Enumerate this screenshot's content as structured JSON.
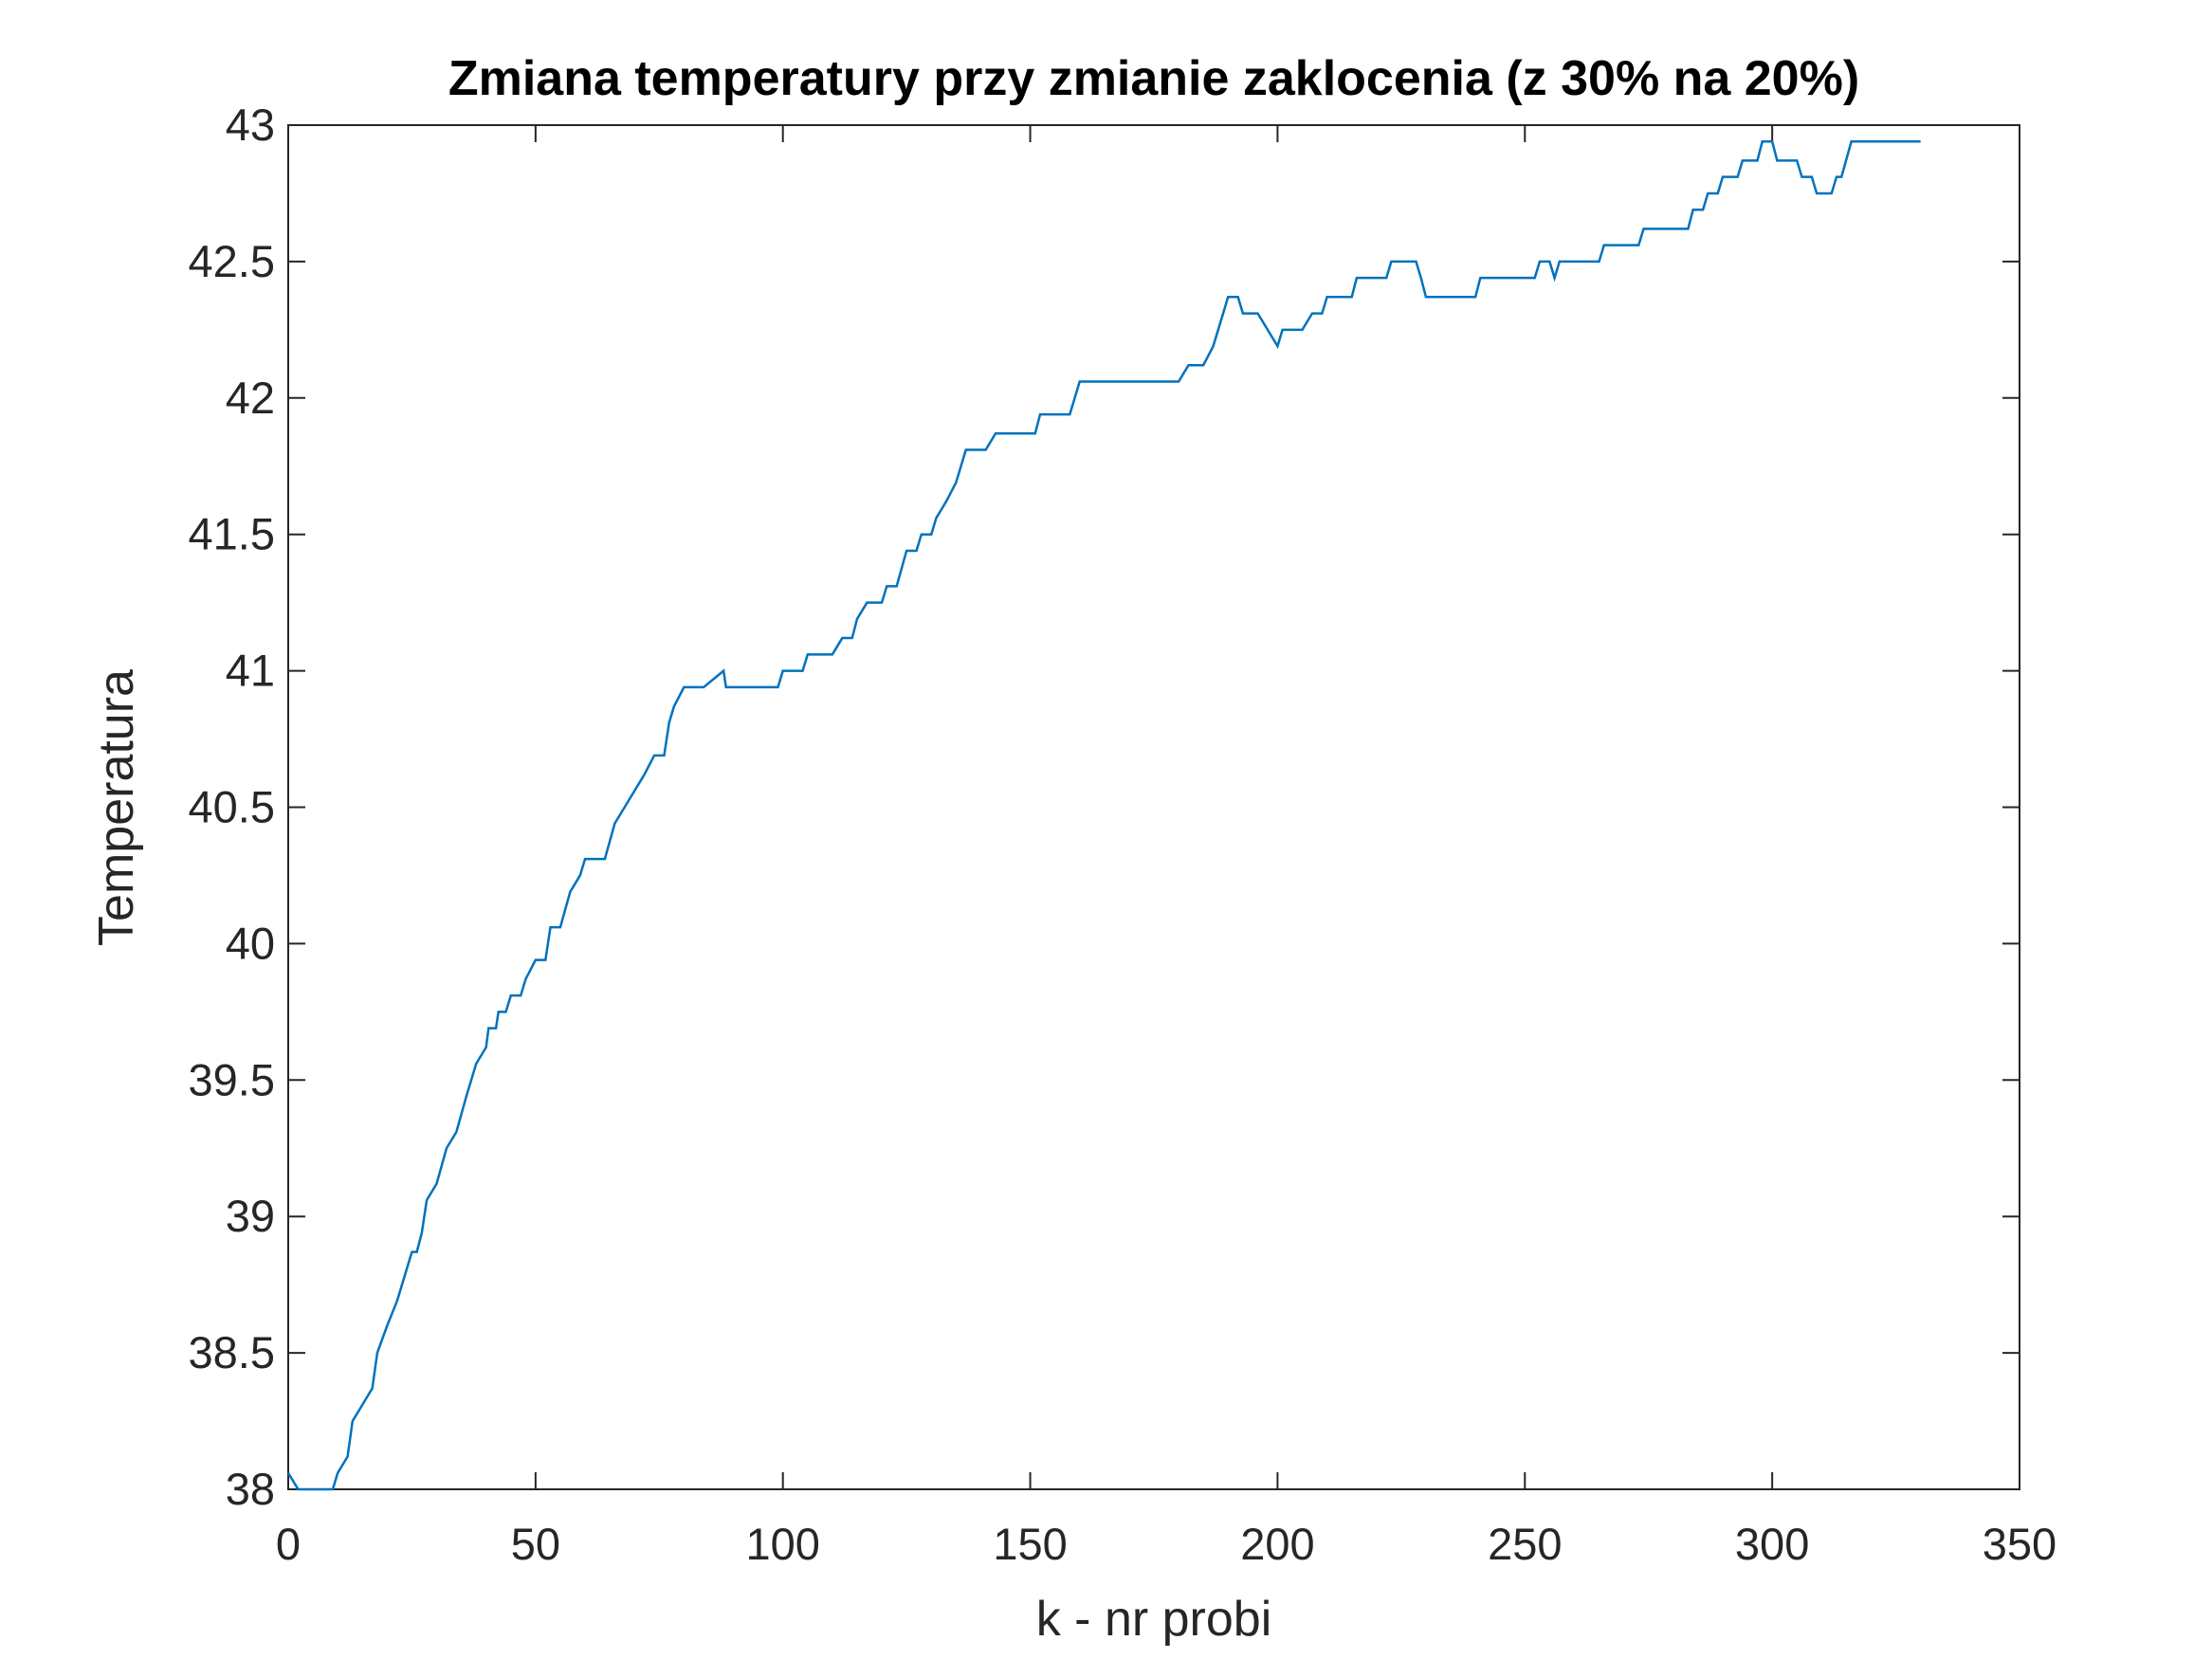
{
  "chart_data": {
    "type": "line",
    "title": "Zmiana temperatury przy zmianie zaklocenia (z 30% na 20%)",
    "x_label": "k - nr probi",
    "y_label": "Temperatura",
    "color": "#0072bd",
    "grid": false,
    "xlim": [
      0,
      350
    ],
    "xticks": [
      0,
      50,
      100,
      150,
      200,
      250,
      300,
      350
    ],
    "ylim": [
      38,
      43
    ],
    "yticks": [
      38,
      38.5,
      39,
      39.5,
      40,
      40.5,
      41,
      41.5,
      42,
      42.5,
      43
    ],
    "x": [
      0,
      2,
      9,
      10,
      12,
      13,
      15,
      17,
      18,
      20,
      22,
      24,
      25,
      26,
      27,
      28,
      30,
      32,
      34,
      36,
      38,
      40,
      40.5,
      42,
      42.5,
      44,
      45,
      47,
      48,
      50,
      52,
      53,
      55,
      57,
      59,
      60,
      64,
      66,
      68,
      70,
      72,
      74,
      76,
      77,
      78,
      80,
      84,
      88,
      88.5,
      99,
      100,
      104,
      105,
      110,
      112,
      114,
      115,
      117,
      120,
      121,
      123,
      125,
      127,
      128,
      130,
      131,
      133,
      135,
      137,
      141,
      143,
      151,
      152,
      158,
      159,
      160,
      180,
      182,
      185,
      187,
      189,
      190,
      192,
      193,
      196,
      198,
      200,
      201,
      205,
      207,
      209,
      210,
      215,
      216,
      222,
      223,
      228,
      229,
      230,
      240,
      241,
      252,
      253,
      255,
      256,
      257,
      265,
      266,
      273,
      274,
      283,
      284,
      286,
      287,
      289,
      290,
      293,
      294,
      297,
      298,
      300,
      301,
      305,
      306,
      308,
      309,
      312,
      313,
      314,
      316,
      330
    ],
    "values": [
      38.06,
      38.0,
      38.0,
      38.06,
      38.12,
      38.25,
      38.31,
      38.37,
      38.5,
      38.6,
      38.69,
      38.81,
      38.87,
      38.87,
      38.94,
      39.06,
      39.12,
      39.25,
      39.31,
      39.44,
      39.56,
      39.62,
      39.69,
      39.69,
      39.75,
      39.75,
      39.81,
      39.81,
      39.87,
      39.94,
      39.94,
      40.06,
      40.06,
      40.19,
      40.25,
      40.31,
      40.31,
      40.44,
      40.5,
      40.56,
      40.62,
      40.69,
      40.69,
      40.81,
      40.87,
      40.94,
      40.94,
      41.0,
      40.94,
      40.94,
      41.0,
      41.0,
      41.06,
      41.06,
      41.12,
      41.12,
      41.19,
      41.25,
      41.25,
      41.31,
      41.31,
      41.44,
      41.44,
      41.5,
      41.5,
      41.56,
      41.62,
      41.69,
      41.81,
      41.81,
      41.87,
      41.87,
      41.94,
      41.94,
      42.0,
      42.06,
      42.06,
      42.12,
      42.12,
      42.19,
      42.31,
      42.37,
      42.37,
      42.31,
      42.31,
      42.25,
      42.19,
      42.25,
      42.25,
      42.31,
      42.31,
      42.37,
      42.37,
      42.44,
      42.44,
      42.5,
      42.5,
      42.44,
      42.37,
      42.37,
      42.44,
      42.44,
      42.5,
      42.5,
      42.44,
      42.5,
      42.5,
      42.56,
      42.56,
      42.62,
      42.62,
      42.69,
      42.69,
      42.75,
      42.75,
      42.81,
      42.81,
      42.87,
      42.87,
      42.94,
      42.94,
      42.87,
      42.87,
      42.81,
      42.81,
      42.75,
      42.75,
      42.81,
      42.81,
      42.94,
      42.94
    ]
  }
}
